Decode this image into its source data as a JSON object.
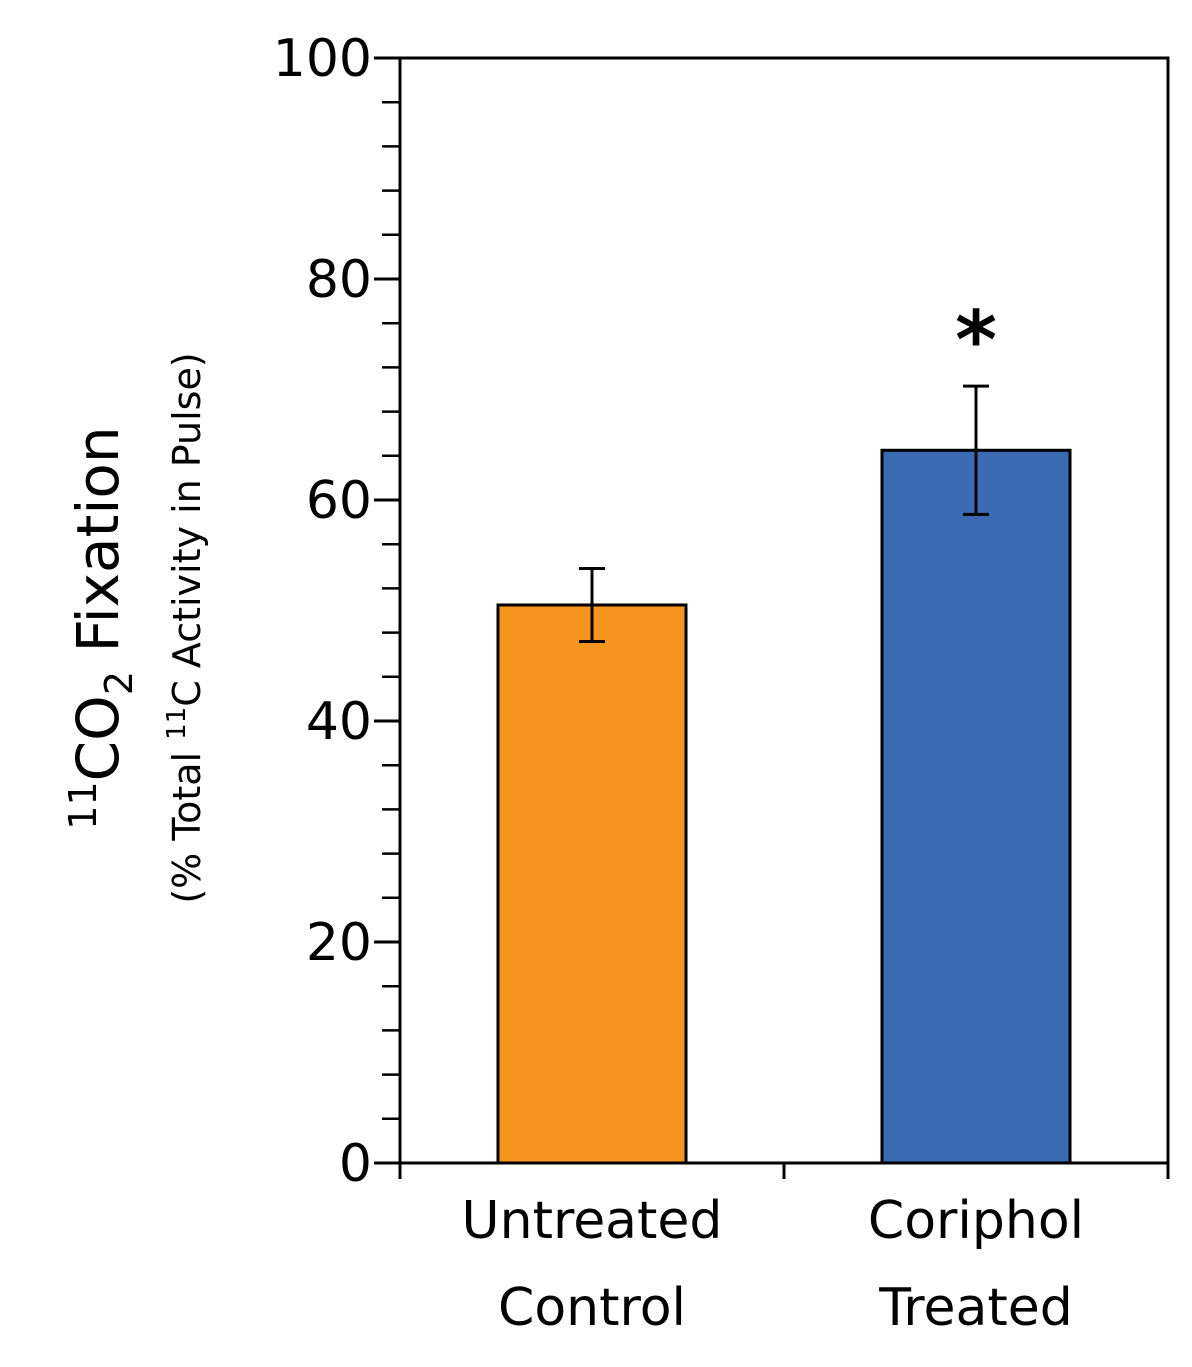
{
  "chart_data": {
    "type": "bar",
    "categories": [
      {
        "line1": "Untreated",
        "line2": "Control"
      },
      {
        "line1": "Coriphol",
        "line2": "Treated"
      }
    ],
    "values": [
      50.5,
      64.5
    ],
    "errors": [
      3.3,
      5.8
    ],
    "colors": [
      "#f7941d",
      "#3c6bb4"
    ],
    "significance": [
      "",
      "*"
    ],
    "ylim": [
      0,
      100
    ],
    "yticks": [
      "0",
      "20",
      "40",
      "60",
      "80",
      "100"
    ],
    "minor_tick_step": 4,
    "ylabel": {
      "main_sup": "11",
      "main_pre": "CO",
      "main_sub": "2",
      "main_post": " Fixation",
      "sub_pre": "(% Total ",
      "sub_sup": "11",
      "sub_post": "C Activity in Pulse)"
    }
  }
}
